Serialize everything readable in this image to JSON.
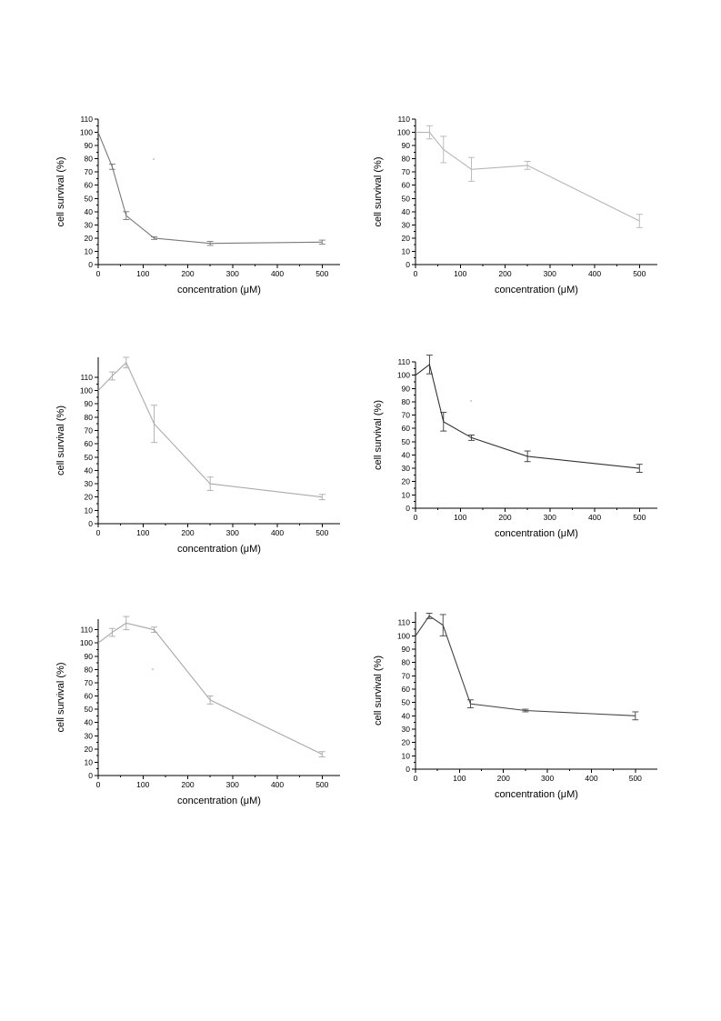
{
  "chart_data": [
    {
      "type": "line",
      "xlabel": "concentration (μM)",
      "ylabel": "cell survival (%)",
      "xlim": [
        0,
        540
      ],
      "ylim": [
        0,
        110
      ],
      "xticks": [
        0,
        100,
        200,
        300,
        400,
        500
      ],
      "yticks": [
        0,
        10,
        20,
        30,
        40,
        50,
        60,
        70,
        80,
        90,
        100,
        110
      ],
      "grid": false,
      "color": "#7a7a7a",
      "series": [
        {
          "x": [
            0,
            31.25,
            62.5,
            125,
            250,
            500
          ],
          "y": [
            100,
            74,
            37,
            20,
            16,
            17
          ],
          "err": [
            0,
            2,
            3,
            1,
            1.5,
            1.5
          ]
        }
      ]
    },
    {
      "type": "line",
      "xlabel": "concentration (μM)",
      "ylabel": "cell survival (%)",
      "xlim": [
        0,
        540
      ],
      "ylim": [
        0,
        110
      ],
      "xticks": [
        0,
        100,
        200,
        300,
        400,
        500
      ],
      "yticks": [
        0,
        10,
        20,
        30,
        40,
        50,
        60,
        70,
        80,
        90,
        100,
        110
      ],
      "grid": false,
      "color": "#b5b5b5",
      "series": [
        {
          "x": [
            0,
            31.25,
            62.5,
            125,
            250,
            500
          ],
          "y": [
            100,
            100,
            87,
            72,
            75,
            33
          ],
          "err": [
            0,
            5,
            10,
            9,
            3,
            5
          ]
        }
      ]
    },
    {
      "type": "line",
      "xlabel": "concentration (μM)",
      "ylabel": "cell survival (%)",
      "xlim": [
        0,
        540
      ],
      "ylim": [
        0,
        125
      ],
      "xticks": [
        0,
        100,
        200,
        300,
        400,
        500
      ],
      "yticks": [
        0,
        10,
        20,
        30,
        40,
        50,
        60,
        70,
        80,
        90,
        100,
        110
      ],
      "grid": false,
      "color": "#ababab",
      "series": [
        {
          "x": [
            0,
            31.25,
            62.5,
            125,
            250,
            500
          ],
          "y": [
            100,
            111,
            121,
            75,
            30,
            20
          ],
          "err": [
            0,
            3,
            4,
            14,
            5,
            2
          ]
        }
      ]
    },
    {
      "type": "line",
      "xlabel": "concentration (μM)",
      "ylabel": "cell survival (%)",
      "xlim": [
        0,
        540
      ],
      "ylim": [
        0,
        110
      ],
      "xticks": [
        0,
        100,
        200,
        300,
        400,
        500
      ],
      "yticks": [
        0,
        10,
        20,
        30,
        40,
        50,
        60,
        70,
        80,
        90,
        100,
        110
      ],
      "grid": false,
      "color": "#333333",
      "series": [
        {
          "x": [
            0,
            31.25,
            62.5,
            125,
            250,
            500
          ],
          "y": [
            100,
            108,
            65,
            53,
            39,
            30
          ],
          "err": [
            0,
            7,
            7,
            2,
            4,
            3
          ]
        }
      ]
    },
    {
      "type": "line",
      "xlabel": "concentration (μM)",
      "ylabel": "cell survival (%)",
      "xlim": [
        0,
        540
      ],
      "ylim": [
        0,
        118
      ],
      "xticks": [
        0,
        100,
        200,
        300,
        400,
        500
      ],
      "yticks": [
        0,
        10,
        20,
        30,
        40,
        50,
        60,
        70,
        80,
        90,
        100,
        110
      ],
      "grid": false,
      "color": "#a8a8a8",
      "series": [
        {
          "x": [
            0,
            31.25,
            62.5,
            125,
            250,
            500
          ],
          "y": [
            100,
            108,
            115,
            110,
            57,
            16
          ],
          "err": [
            0,
            3,
            5,
            2,
            3,
            2
          ]
        }
      ]
    },
    {
      "type": "line",
      "xlabel": "concentration (μM)",
      "ylabel": "cell survival (%)",
      "xlim": [
        0,
        550
      ],
      "ylim": [
        0,
        118
      ],
      "xticks": [
        0,
        100,
        200,
        300,
        400,
        500
      ],
      "yticks": [
        0,
        10,
        20,
        30,
        40,
        50,
        60,
        70,
        80,
        90,
        100,
        110
      ],
      "grid": false,
      "color": "#444444",
      "series": [
        {
          "x": [
            0,
            31.25,
            62.5,
            125,
            250,
            500
          ],
          "y": [
            100,
            115,
            108,
            49,
            44,
            40
          ],
          "err": [
            0,
            2,
            8,
            3,
            1,
            3
          ]
        }
      ]
    }
  ]
}
